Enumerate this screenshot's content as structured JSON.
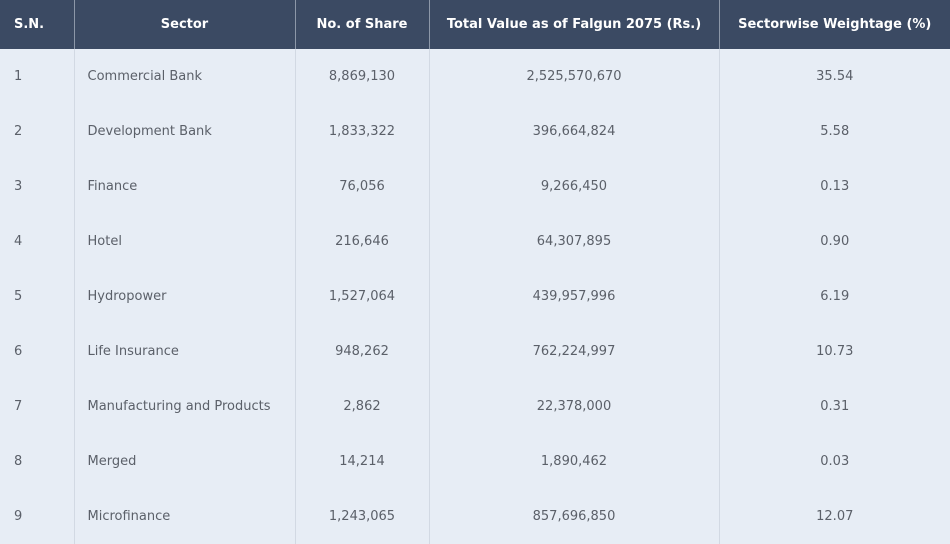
{
  "table": {
    "headers": {
      "sn": "S.N.",
      "sector": "Sector",
      "shares": "No. of Share",
      "value": "Total Value as of Falgun 2075 (Rs.)",
      "weightage": "Sectorwise Weightage (%)"
    },
    "rows": [
      {
        "sn": "1",
        "sector": "Commercial Bank",
        "shares": "8,869,130",
        "value": "2,525,570,670",
        "weightage": "35.54"
      },
      {
        "sn": "2",
        "sector": "Development Bank",
        "shares": "1,833,322",
        "value": "396,664,824",
        "weightage": "5.58"
      },
      {
        "sn": "3",
        "sector": "Finance",
        "shares": "76,056",
        "value": "9,266,450",
        "weightage": "0.13"
      },
      {
        "sn": "4",
        "sector": "Hotel",
        "shares": "216,646",
        "value": "64,307,895",
        "weightage": "0.90"
      },
      {
        "sn": "5",
        "sector": "Hydropower",
        "shares": "1,527,064",
        "value": "439,957,996",
        "weightage": "6.19"
      },
      {
        "sn": "6",
        "sector": "Life Insurance",
        "shares": "948,262",
        "value": "762,224,997",
        "weightage": "10.73"
      },
      {
        "sn": "7",
        "sector": "Manufacturing and Products",
        "shares": "2,862",
        "value": "22,378,000",
        "weightage": "0.31"
      },
      {
        "sn": "8",
        "sector": "Merged",
        "shares": "14,214",
        "value": "1,890,462",
        "weightage": "0.03"
      },
      {
        "sn": "9",
        "sector": "Microfinance",
        "shares": "1,243,065",
        "value": "857,696,850",
        "weightage": "12.07"
      }
    ]
  },
  "colors": {
    "header_bg": "#3b4a63",
    "row_bg": "#e7edf5",
    "text": "#5b6069"
  }
}
